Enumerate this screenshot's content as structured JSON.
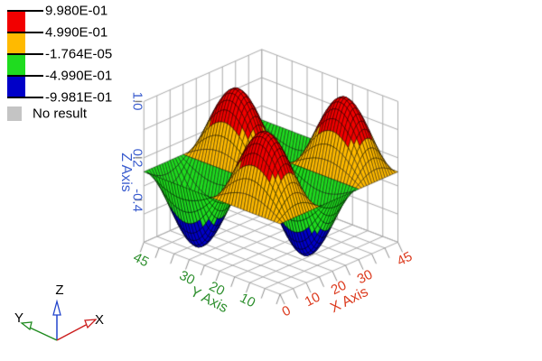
{
  "window": {
    "background": "#ffffff"
  },
  "legend": {
    "tick_labels": [
      "9.980E-01",
      "4.990E-01",
      "-1.764E-05",
      "-4.990E-01",
      "-9.981E-01"
    ],
    "band_colors": [
      "#f20000",
      "#ffba00",
      "#1fdc1f",
      "#0000c8"
    ],
    "no_result_label": "No result",
    "no_result_color": "#c4c4c4",
    "text_color": "#000000",
    "tick_line_color": "#000000"
  },
  "axes_triad": {
    "x_label": "X",
    "y_label": "Y",
    "z_label": "Z",
    "x_color": "#cc1f1f",
    "y_color": "#1f8b1f",
    "z_color": "#2244cc",
    "label_color": "#000000"
  },
  "chart_data": {
    "type": "surface",
    "function": "z = sin(pi*x/15) * sin(pi*y/22.5)",
    "x_axis": {
      "label": "X Axis",
      "color": "#dc3c20",
      "range": [
        0,
        45
      ],
      "tick_labels": [
        "0",
        "10",
        "20",
        "30",
        "45"
      ],
      "tick_values": [
        0,
        10,
        20,
        30,
        45
      ],
      "grid_step": 5
    },
    "y_axis": {
      "label": "Y Axis",
      "color": "#2e8f2e",
      "range": [
        0,
        45
      ],
      "tick_labels": [
        "45",
        "30",
        "20",
        "10"
      ],
      "tick_values": [
        45,
        30,
        20,
        10
      ],
      "grid_step": 5
    },
    "z_axis": {
      "label": "Z Axis",
      "color": "#3a5cce",
      "range": [
        -1,
        1
      ],
      "tick_labels": [
        "1.0",
        "0.2",
        "-0.4"
      ],
      "tick_values": [
        1.0,
        0.2,
        -0.4
      ],
      "grid_step": 0.4
    },
    "value_range": [
      -0.9981,
      0.998
    ],
    "color_bands": [
      {
        "from": 0.499,
        "to": 0.998,
        "color": "#f20000"
      },
      {
        "from": -1.764e-05,
        "to": 0.499,
        "color": "#ffba00"
      },
      {
        "from": -0.499,
        "to": -1.764e-05,
        "color": "#1fdc1f"
      },
      {
        "from": -0.9981,
        "to": -0.499,
        "color": "#0000c8"
      }
    ],
    "grid_divisions": 45,
    "grid_color": "#ababab",
    "tick_mark_color": "#8f8f8f",
    "mesh_line_color": "#000000",
    "legend_on": true
  }
}
